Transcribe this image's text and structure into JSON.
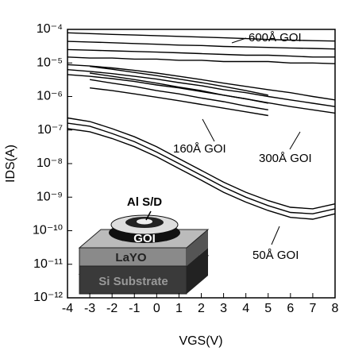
{
  "chart_data": {
    "type": "line",
    "x_label": "VGS(V)",
    "y_label": "IDS(A)",
    "x": [
      -4,
      -3,
      -2,
      -1,
      0,
      1,
      2,
      3,
      4,
      5,
      6,
      7,
      8
    ],
    "xlim": [
      -4,
      8
    ],
    "xticks": [
      -4,
      -3,
      -2,
      -1,
      0,
      1,
      2,
      3,
      4,
      5,
      6,
      7,
      8
    ],
    "ylim": [
      1e-12,
      0.0001
    ],
    "log_y": true,
    "yticks": [
      {
        "value": 1e-12,
        "label": "10⁻¹²"
      },
      {
        "value": 1e-11,
        "label": "10⁻¹¹"
      },
      {
        "value": 1e-10,
        "label": "10⁻¹⁰"
      },
      {
        "value": 1e-09,
        "label": "10⁻⁹"
      },
      {
        "value": 1e-08,
        "label": "10⁻⁸"
      },
      {
        "value": 1e-07,
        "label": "10⁻⁷"
      },
      {
        "value": 1e-06,
        "label": "10⁻⁶"
      },
      {
        "value": 1e-05,
        "label": "10⁻⁵"
      },
      {
        "value": 0.0001,
        "label": "10⁻⁴"
      }
    ],
    "annotations": [
      "600Å GOI",
      "160Å GOI",
      "300Å GOI",
      "50Å GOI",
      "Al S/D",
      "GOI",
      "LaYO",
      "Si Substrate"
    ],
    "series": [
      {
        "color": "#000000",
        "values": [
          7.9e-05,
          7.5e-05,
          7.1e-05,
          6.8e-05,
          6.5e-05,
          6.2e-05,
          5.9e-05,
          5.6e-05,
          5.3e-05,
          5e-05,
          4.8e-05,
          4.6e-05,
          4.5e-05
        ]
      },
      {
        "color": "#000000",
        "values": [
          4.4e-05,
          4.2e-05,
          4e-05,
          3.8e-05,
          3.6e-05,
          3.4e-05,
          3.3e-05,
          3.1e-05,
          3e-05,
          2.9e-05,
          2.8e-05,
          2.7e-05,
          2.6e-05
        ]
      },
      {
        "color": "#000000",
        "values": [
          2.5e-05,
          2.4e-05,
          2.3e-05,
          2.2e-05,
          2.1e-05,
          2e-05,
          1.9e-05,
          1.8e-05,
          1.7e-05,
          1.7e-05,
          1.6e-05,
          1.5e-05,
          1.5e-05
        ]
      },
      {
        "color": "#000000",
        "values": [
          1.5e-05,
          1.4e-05,
          1.4e-05,
          1.3e-05,
          1.3e-05,
          1.2e-05,
          1.2e-05,
          1.1e-05,
          1.1e-05,
          1.1e-05,
          1e-05,
          1e-05,
          9.5e-06
        ]
      },
      {
        "color": "#000000",
        "values": [
          8.9e-06,
          8.1e-06,
          7.1e-06,
          6e-06,
          5e-06,
          4e-06,
          3.2e-06,
          2.5e-06,
          2e-06,
          1.6e-06,
          1.3e-06,
          1e-06,
          7.9e-07
        ]
      },
      {
        "color": "#000000",
        "values": [
          6.3e-06,
          5.6e-06,
          4.8e-06,
          4e-06,
          3.3e-06,
          2.6e-06,
          2.1e-06,
          1.6e-06,
          1.3e-06,
          1e-06,
          7.9e-07,
          6.3e-07,
          5e-07
        ]
      },
      {
        "color": "#000000",
        "values": [
          4.5e-06,
          4e-06,
          3.4e-06,
          2.8e-06,
          2.2e-06,
          1.8e-06,
          1.4e-06,
          1.1e-06,
          8.5e-07,
          6.5e-07,
          5e-07,
          4e-07,
          3.2e-07
        ]
      },
      {
        "color": "#000000",
        "values": [
          null,
          7.9e-06,
          6.5e-06,
          5.2e-06,
          4.2e-06,
          3.3e-06,
          2.6e-06,
          2e-06,
          1.5e-06,
          1.1e-06,
          null,
          null,
          null
        ]
      },
      {
        "color": "#000000",
        "values": [
          null,
          5e-06,
          4e-06,
          3.2e-06,
          2.5e-06,
          1.9e-06,
          1.5e-06,
          1.1e-06,
          8.5e-07,
          6.3e-07,
          null,
          null,
          null
        ]
      },
      {
        "color": "#000000",
        "values": [
          null,
          3.2e-06,
          2.5e-06,
          2e-06,
          1.5e-06,
          1.2e-06,
          9e-07,
          7e-07,
          5.2e-07,
          4e-07,
          null,
          null,
          null
        ]
      },
      {
        "color": "#000000",
        "values": [
          null,
          1.8e-06,
          1.5e-06,
          1.2e-06,
          9.5e-07,
          7.5e-07,
          5.8e-07,
          4.5e-07,
          3.5e-07,
          2.7e-07,
          null,
          null,
          null
        ]
      },
      {
        "color": "#000000",
        "values": [
          2.3e-07,
          1.8e-07,
          1.1e-07,
          6.3e-08,
          3.2e-08,
          1.4e-08,
          6.3e-09,
          2.8e-09,
          1.4e-09,
          7.9e-10,
          5e-10,
          4.5e-10,
          6.3e-10
        ]
      },
      {
        "color": "#000000",
        "values": [
          1.6e-07,
          1.3e-07,
          7.9e-08,
          4.5e-08,
          2.2e-08,
          1e-08,
          4.5e-09,
          2e-09,
          1e-09,
          5.6e-10,
          3.5e-10,
          3.2e-10,
          4.5e-10
        ]
      },
      {
        "color": "#000000",
        "values": [
          1.1e-07,
          8.9e-08,
          5.6e-08,
          3.2e-08,
          1.6e-08,
          7.1e-09,
          3.2e-09,
          1.4e-09,
          7.1e-10,
          4e-10,
          2.5e-10,
          2.2e-10,
          3.2e-10
        ]
      }
    ]
  }
}
